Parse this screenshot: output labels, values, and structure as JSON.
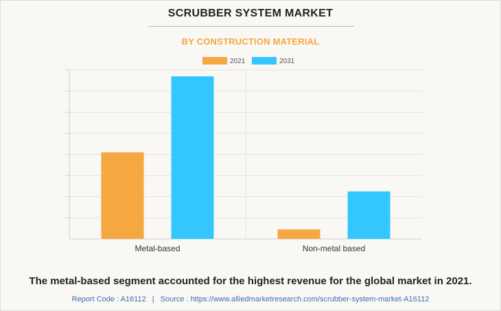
{
  "header": {
    "title": "SCRUBBER SYSTEM MARKET",
    "subtitle": "BY CONSTRUCTION MATERIAL"
  },
  "chart_data": {
    "type": "bar",
    "categories": [
      "Metal-based",
      "Non-metal based"
    ],
    "series": [
      {
        "name": "2021",
        "color": "#f5a742",
        "values": [
          4.1,
          0.45
        ]
      },
      {
        "name": "2031",
        "color": "#33c6ff",
        "values": [
          7.7,
          2.25
        ]
      }
    ],
    "ylim": [
      0,
      8
    ],
    "grid": true,
    "legend": "top-center",
    "xlabel": "",
    "ylabel": ""
  },
  "caption": "The metal-based segment accounted for the highest revenue for the global market in 2021.",
  "footer": {
    "report_code": "Report Code : A16112",
    "separator": "|",
    "source": "Source : https://www.alliedmarketresearch.com/scrubber-system-market-A16112"
  }
}
